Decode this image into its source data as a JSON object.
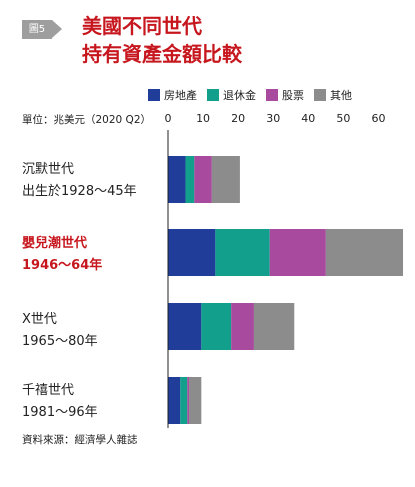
{
  "figure": {
    "badge": "圖5"
  },
  "title_lines": [
    "美國不同世代",
    "持有資產金額比較"
  ],
  "unit_label": "單位：兆美元（2020 Q2）",
  "source": "資料來源：經濟學人雜誌",
  "colors": {
    "房地產": "#1f3d99",
    "退休金": "#12a08c",
    "股票": "#a84b9e",
    "其他": "#8c8c8c",
    "highlight": "#c7171e"
  },
  "category_labels": [
    {
      "lines": [
        "沉默世代",
        "出生於1928～45年"
      ],
      "highlight": false
    },
    {
      "lines": [
        "嬰兒潮世代",
        "1946～64年"
      ],
      "highlight": true
    },
    {
      "lines": [
        "X世代",
        "1965～80年"
      ],
      "highlight": false
    },
    {
      "lines": [
        "千禧世代",
        "1981～96年"
      ],
      "highlight": false
    }
  ],
  "chart_data": {
    "type": "bar",
    "orientation": "horizontal",
    "stacked": true,
    "categories": [
      "沉默世代",
      "嬰兒潮世代",
      "X世代",
      "千禧世代"
    ],
    "series": [
      {
        "name": "房地產",
        "values": [
          5,
          13.5,
          9.5,
          3.5
        ]
      },
      {
        "name": "退休金",
        "values": [
          2.5,
          15.5,
          8.5,
          2
        ]
      },
      {
        "name": "股票",
        "values": [
          5,
          16,
          6.5,
          0.5
        ]
      },
      {
        "name": "其他",
        "values": [
          8,
          22,
          11.5,
          3.5
        ]
      }
    ],
    "xlim": [
      0,
      65
    ],
    "xticks": [
      0,
      10,
      20,
      30,
      40,
      50,
      60
    ],
    "legend_position": "top"
  }
}
